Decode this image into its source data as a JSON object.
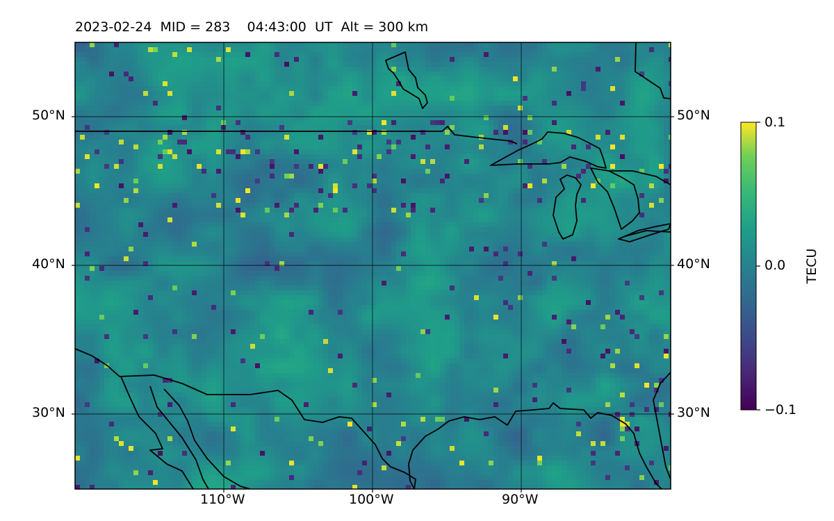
{
  "title": "2023-02-24  MID = 283    04:43:00  UT  Alt = 300 km",
  "map": {
    "projection": "plate-carree",
    "lon_range": [
      -120,
      -80
    ],
    "lat_range": [
      25,
      55
    ],
    "lat_labels": [
      "50°N",
      "40°N",
      "30°N"
    ],
    "lon_labels": [
      "110°W",
      "100°W",
      "90°W"
    ],
    "gridlines": true,
    "features": [
      "coastlines",
      "country-borders",
      "great-lakes"
    ]
  },
  "colorbar": {
    "label": "TECU",
    "colormap": "viridis",
    "vmin": -0.1,
    "vmax": 0.1,
    "tick_labels": [
      "0.1",
      "0.0",
      "−0.1"
    ]
  }
}
